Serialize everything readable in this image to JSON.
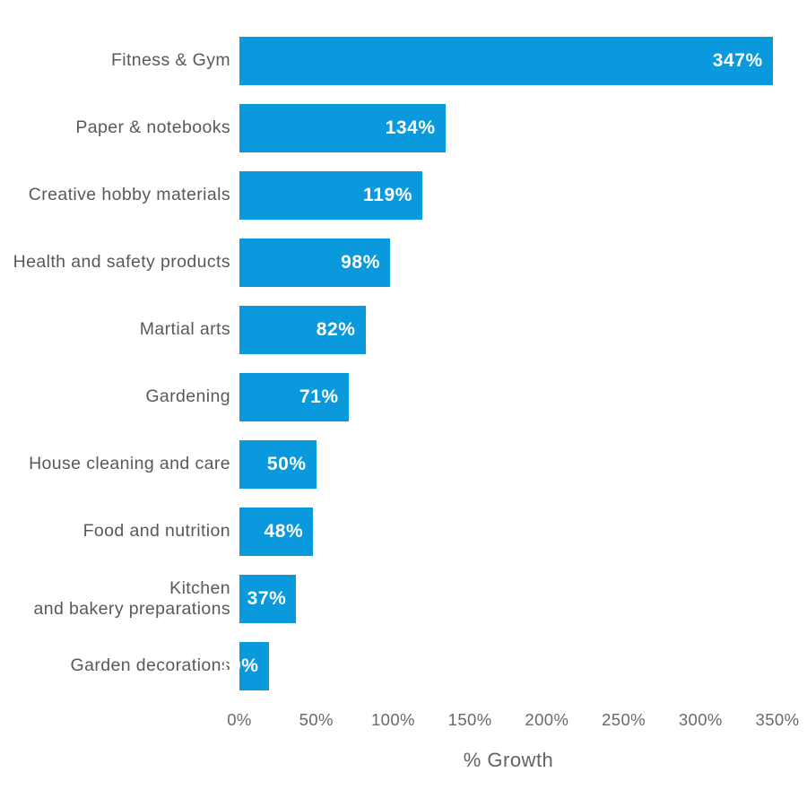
{
  "chart_data": {
    "type": "bar",
    "orientation": "horizontal",
    "title": "",
    "xlabel": "% Growth",
    "ylabel": "",
    "xlim": [
      0,
      350
    ],
    "grid": false,
    "legend": false,
    "categories": [
      "Fitness & Gym",
      "Paper & notebooks",
      "Creative hobby materials",
      "Health and safety products",
      "Martial arts",
      "Gardening",
      "House cleaning and care",
      "Food and nutrition",
      "Kitchen\nand bakery preparations",
      "Garden decorations"
    ],
    "values": [
      347,
      134,
      119,
      98,
      82,
      71,
      50,
      48,
      37,
      19
    ],
    "value_labels": [
      "347%",
      "134%",
      "119%",
      "98%",
      "82%",
      "71%",
      "50%",
      "48%",
      "37%",
      "19%"
    ],
    "x_ticks": [
      "0%",
      "50%",
      "100%",
      "150%",
      "200%",
      "250%",
      "300%",
      "350%"
    ],
    "x_tick_values": [
      0,
      50,
      100,
      150,
      200,
      250,
      300,
      350
    ],
    "colors": {
      "bar": "#0a99dc",
      "category_label": "#595959",
      "value_label": "#ffffff",
      "tick_label": "#6a6a6a",
      "axis_label": "#636363",
      "background": "#ffffff"
    }
  }
}
